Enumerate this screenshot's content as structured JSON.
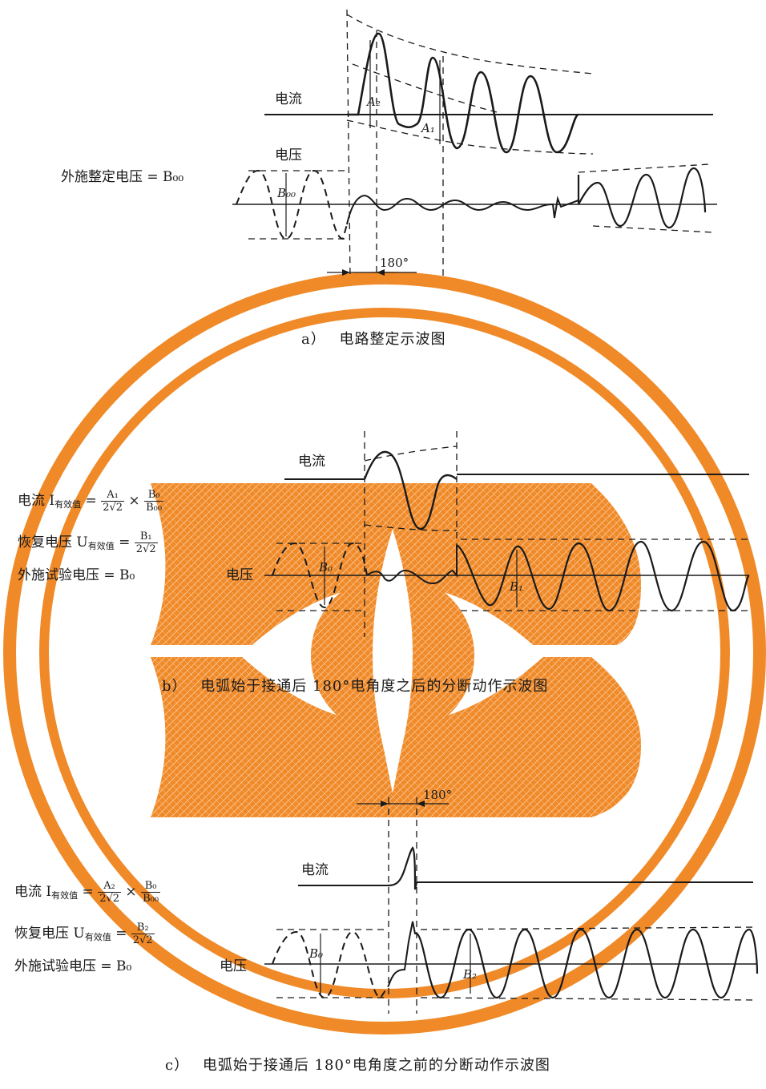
{
  "colors": {
    "ink": "#1a1a1a",
    "watermark": "#f08a28"
  },
  "watermark": {
    "type": "logo",
    "description": "orange double ring with stylized B-eye emblem"
  },
  "panel_a": {
    "current_label": "电流",
    "voltage_label": "电压",
    "applied_voltage_text": "外施整定电压 = B₀₀",
    "a2": "A₂",
    "a1": "A₁",
    "b00": "B₀₀",
    "angle": "180°",
    "caption_letter": "a）",
    "caption_text": "电路整定示波图"
  },
  "panel_b": {
    "current_label": "电流",
    "voltage_label": "电压",
    "formula_current_prefix": "电流 I",
    "formula_current_sub": "有效值",
    "formula_current_num1": "A₁",
    "formula_current_den1": "2√2",
    "formula_current_num2": "B₀",
    "formula_current_den2": "B₀₀",
    "formula_recovery_prefix": "恢复电压 U",
    "formula_recovery_sub": "有效值",
    "formula_recovery_num": "B₁",
    "formula_recovery_den": "2√2",
    "formula_applied": "外施试验电压 = B₀",
    "b0": "B₀",
    "b1": "B₁",
    "caption_letter": "b）",
    "caption_text": "电弧始于接通后 180°电角度之后的分断动作示波图"
  },
  "panel_c": {
    "current_label": "电流",
    "voltage_label": "电压",
    "formula_current_prefix": "电流 I",
    "formula_current_sub": "有效值",
    "formula_current_num1": "A₂",
    "formula_current_den1": "2√2",
    "formula_current_num2": "B₀",
    "formula_current_den2": "B₀₀",
    "formula_recovery_prefix": "恢复电压 U",
    "formula_recovery_sub": "有效值",
    "formula_recovery_num": "B₂",
    "formula_recovery_den": "2√2",
    "formula_applied": "外施试验电压 = B₀",
    "b0": "B₀",
    "b2": "B₂",
    "angle": "180°",
    "caption_letter": "c）",
    "caption_text": "电弧始于接通后 180°电角度之前的分断动作示波图"
  }
}
